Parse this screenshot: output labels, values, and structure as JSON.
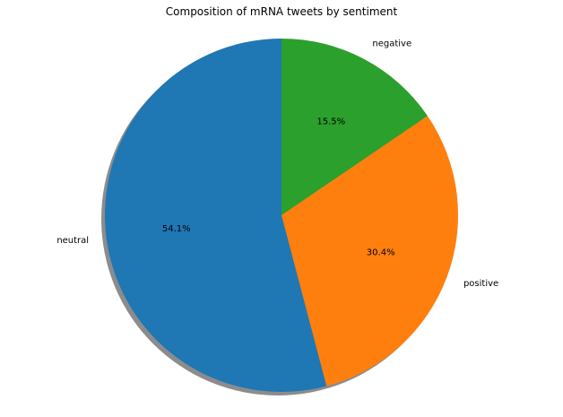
{
  "chart_data": {
    "type": "pie",
    "title": "Composition of mRNA tweets by sentiment",
    "categories": [
      "negative",
      "positive",
      "neutral"
    ],
    "values": [
      15.5,
      30.4,
      54.1
    ],
    "percent_labels": [
      "15.5%",
      "30.4%",
      "54.1%"
    ],
    "colors": [
      "#2ca02c",
      "#ff7f0e",
      "#1f77b4"
    ],
    "start_angle_deg": 90,
    "direction": "clockwise",
    "shadow": true,
    "legend": "none"
  }
}
